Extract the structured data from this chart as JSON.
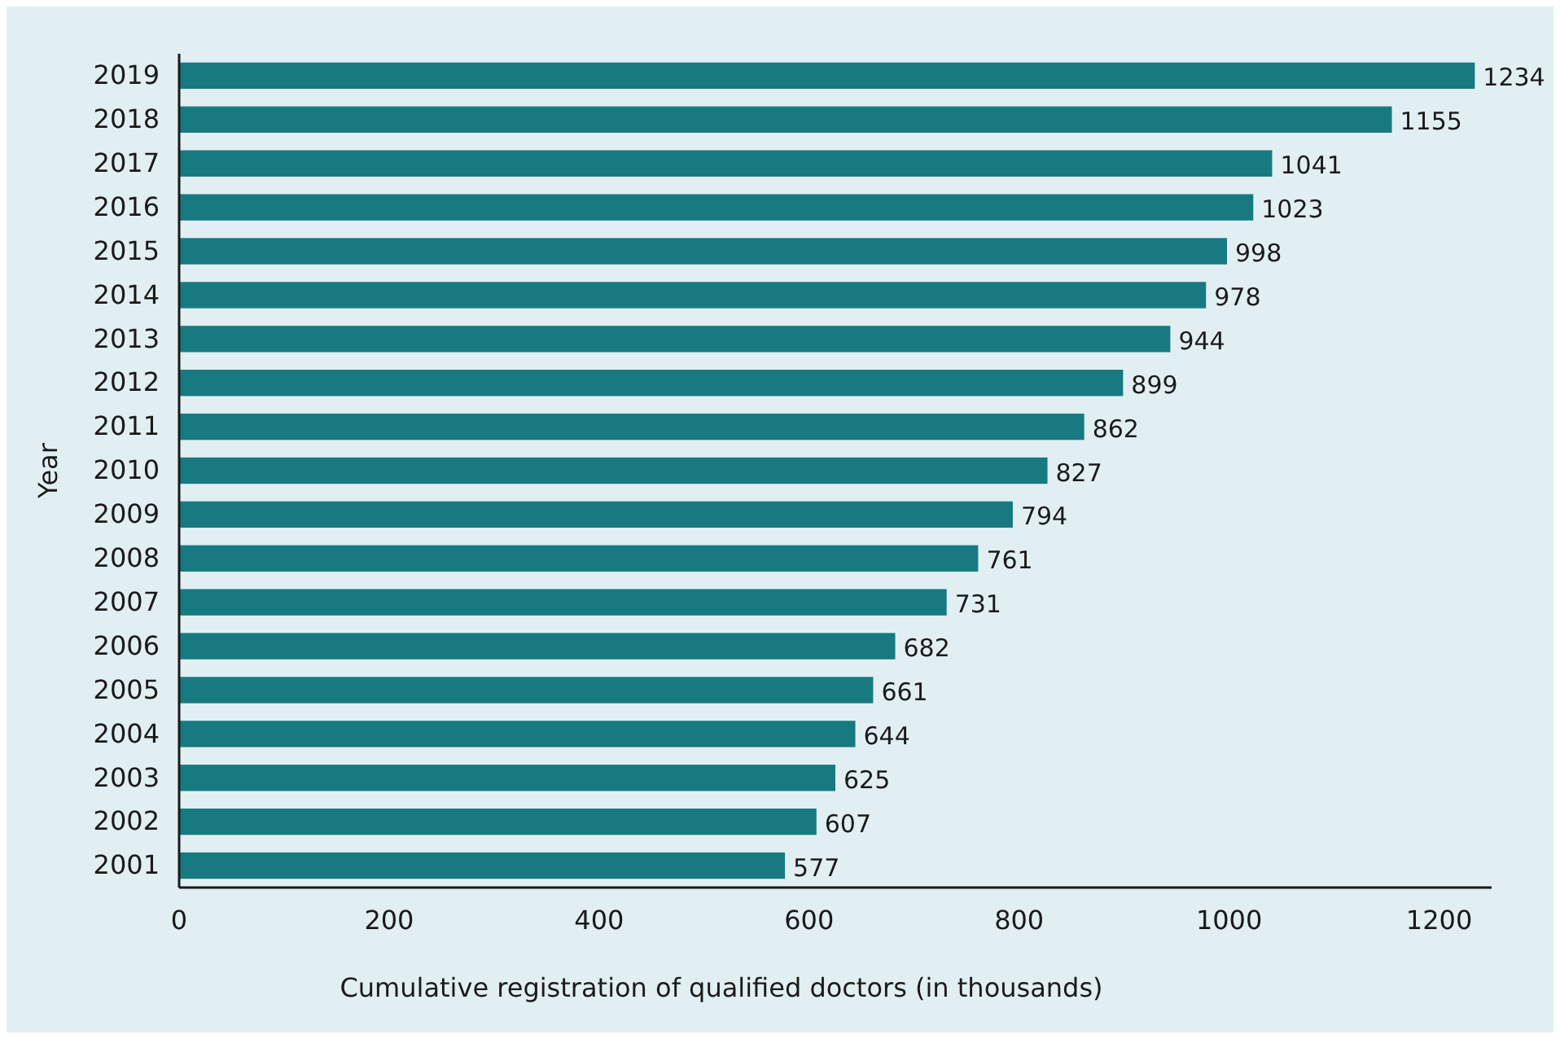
{
  "chart_data": {
    "type": "bar",
    "orientation": "horizontal",
    "xlabel": "Cumulative registration of qualified doctors (in thousands)",
    "ylabel": "Year",
    "categories": [
      "2019",
      "2018",
      "2017",
      "2016",
      "2015",
      "2014",
      "2013",
      "2012",
      "2011",
      "2010",
      "2009",
      "2008",
      "2007",
      "2006",
      "2005",
      "2004",
      "2003",
      "2002",
      "2001"
    ],
    "values": [
      1234,
      1155,
      1041,
      1023,
      998,
      978,
      944,
      899,
      862,
      827,
      794,
      761,
      731,
      682,
      661,
      644,
      625,
      607,
      577
    ],
    "color": "#177a80",
    "xlim": [
      0,
      1250
    ],
    "xticks": [
      0,
      200,
      400,
      600,
      800,
      1000,
      1200
    ],
    "data_labels": true,
    "grid": false
  }
}
